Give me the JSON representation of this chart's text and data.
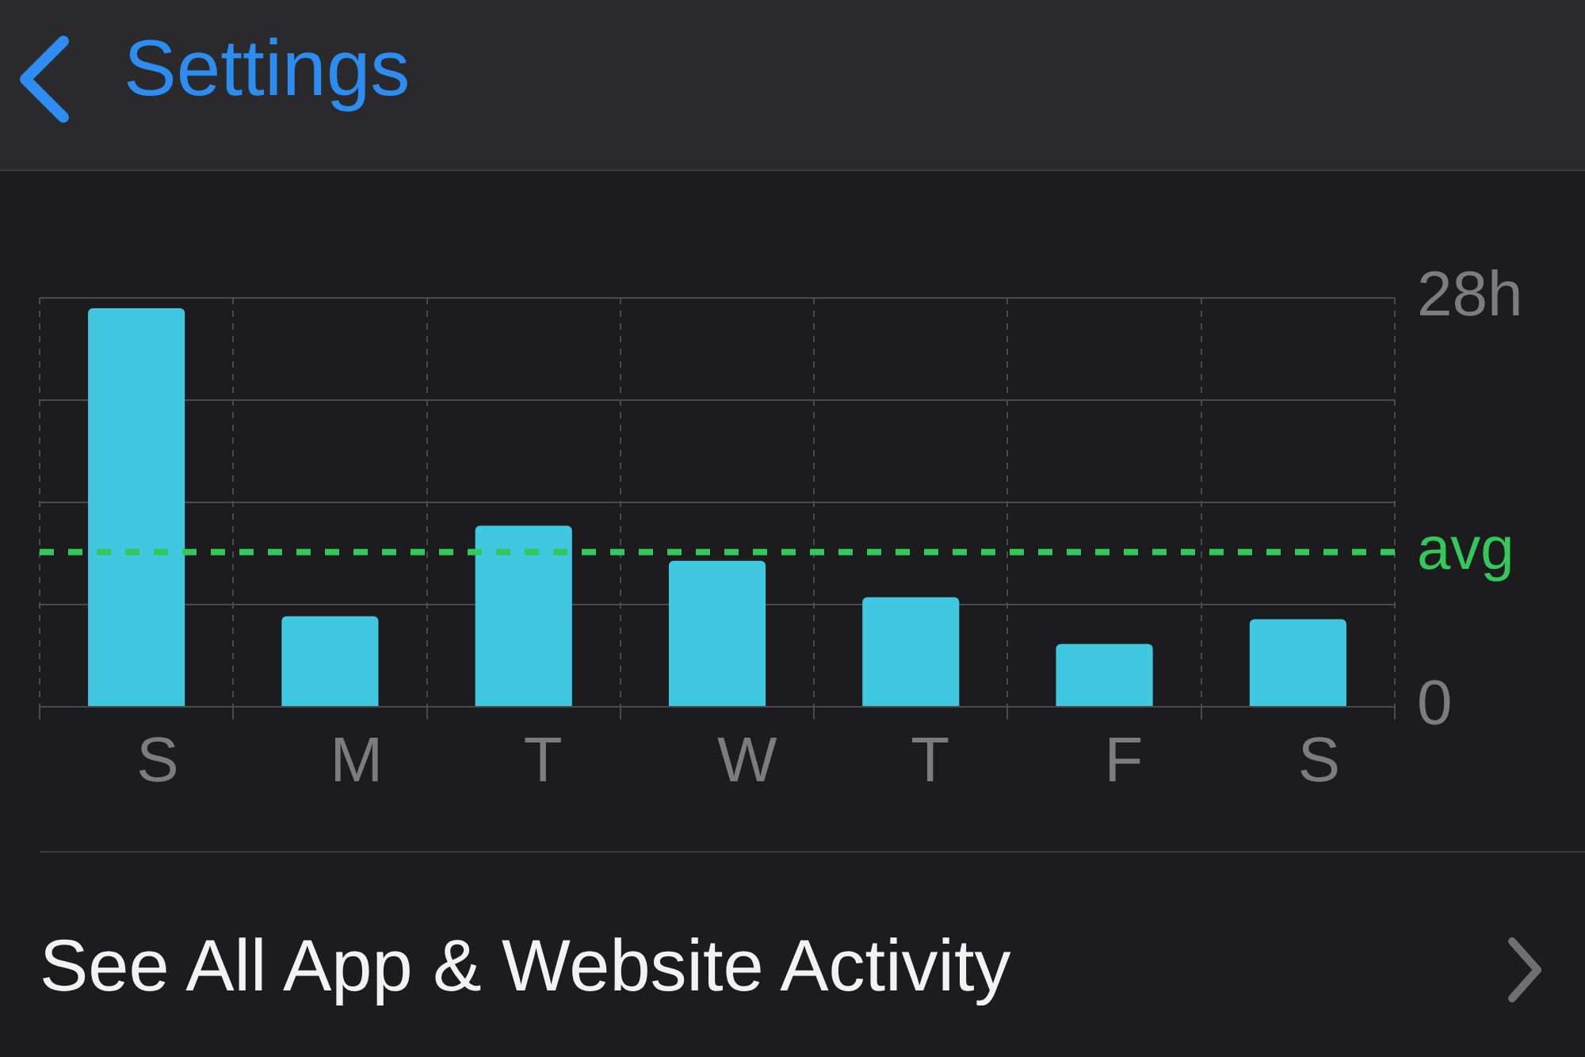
{
  "chart_data": {
    "type": "bar",
    "categories": [
      "S",
      "M",
      "T",
      "W",
      "T",
      "F",
      "S"
    ],
    "values": [
      27.3,
      6.2,
      12.4,
      10.0,
      7.5,
      4.3,
      6.0
    ],
    "color": "#40c8e0",
    "ylim": [
      0,
      28
    ],
    "yticks": [
      {
        "value": 0,
        "label": "0"
      },
      {
        "value": 7,
        "label": null
      },
      {
        "value": 14,
        "label": null
      },
      {
        "value": 21,
        "label": null
      },
      {
        "value": 28,
        "label": "28h"
      }
    ],
    "grid": true,
    "legend": false,
    "ref_lines": [
      {
        "axis": "y",
        "value": 10.6,
        "label": "avg",
        "color": "#34c759",
        "line_style": "dashed"
      }
    ],
    "annotations": [
      "Settings",
      "See All App & Website Activity"
    ]
  }
}
